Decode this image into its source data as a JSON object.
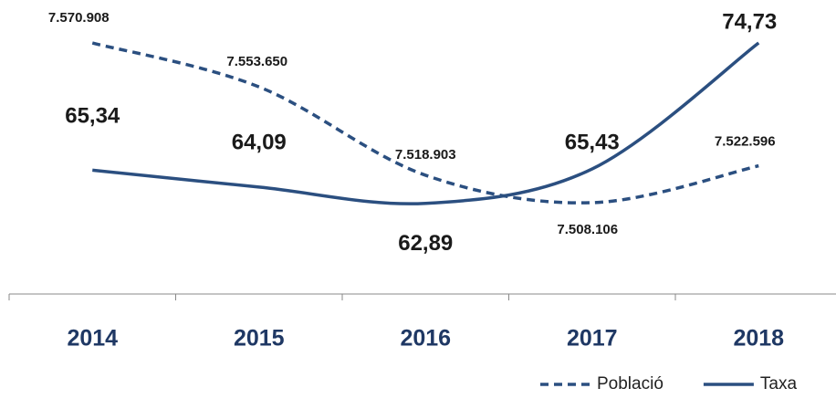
{
  "chart_data": {
    "type": "line",
    "categories": [
      "2014",
      "2015",
      "2016",
      "2017",
      "2018"
    ],
    "series": [
      {
        "name": "Població",
        "color": "#2b4f80",
        "axis": "y2",
        "dash": true,
        "values": [
          7570908,
          7553650,
          7518903,
          7508106,
          7522596
        ],
        "value_labels": [
          "7.570.908",
          "7.553.650",
          "7.518.903",
          "7.508.106",
          "7.522.596"
        ]
      },
      {
        "name": "Taxa",
        "color": "#2b4f80",
        "values": [
          65.34,
          64.09,
          62.89,
          65.43,
          74.73
        ],
        "value_labels": [
          "65,34",
          "64,09",
          "62,89",
          "65,43",
          "74,73"
        ]
      }
    ],
    "ylim": [
      56.2,
      77.9
    ],
    "y2lim": [
      7472200,
      7587800
    ],
    "legend": "bottom-right"
  }
}
